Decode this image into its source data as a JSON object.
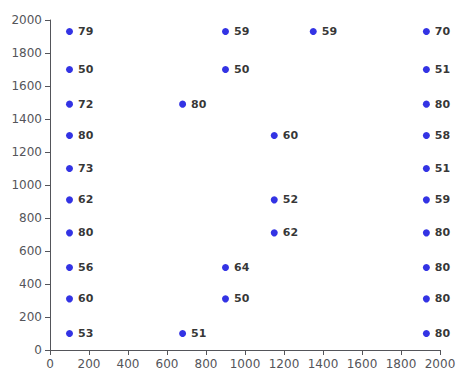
{
  "chart_data": {
    "type": "scatter",
    "x": [
      100,
      100,
      100,
      100,
      100,
      100,
      100,
      100,
      100,
      100,
      900,
      900,
      680,
      1150,
      1150,
      1150,
      900,
      900,
      680,
      1350,
      1930,
      1930,
      1930,
      1930,
      1930,
      1930,
      1930,
      1930,
      1930,
      1930
    ],
    "values": [
      1930,
      1700,
      1490,
      1300,
      1100,
      910,
      710,
      500,
      310,
      100,
      1930,
      1700,
      1490,
      1300,
      910,
      710,
      500,
      310,
      100,
      1930,
      1930,
      1700,
      1490,
      1300,
      1100,
      910,
      710,
      500,
      310,
      100
    ],
    "labels": [
      "79",
      "50",
      "72",
      "80",
      "73",
      "62",
      "80",
      "56",
      "60",
      "53",
      "59",
      "50",
      "80",
      "60",
      "52",
      "62",
      "64",
      "50",
      "51",
      "59",
      "70",
      "51",
      "80",
      "58",
      "51",
      "59",
      "80",
      "80",
      "80",
      "80"
    ],
    "color": "#0000dd",
    "marker": "circle",
    "xlim": [
      0,
      2000
    ],
    "ylim": [
      0,
      2000
    ],
    "xticks": [
      0,
      200,
      400,
      600,
      800,
      1000,
      1200,
      1400,
      1600,
      1800,
      2000
    ],
    "yticks": [
      0,
      200,
      400,
      600,
      800,
      1000,
      1200,
      1400,
      1600,
      1800,
      2000
    ],
    "grid": false
  }
}
